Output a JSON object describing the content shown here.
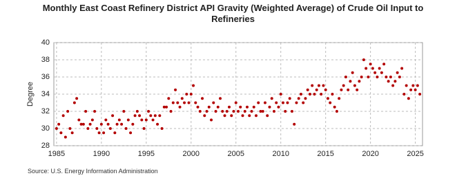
{
  "chart_data": {
    "type": "scatter",
    "title": "Monthly East Coast Refinery District API Gravity (Weighted Average) of Crude Oil Input to Refineries",
    "y_label": "Degree",
    "source": "Source: U.S. Energy Information Administration",
    "color": "#b30000",
    "grid": true,
    "xlim": [
      1984.7,
      2025.8
    ],
    "ylim": [
      28,
      40
    ],
    "xticks": [
      1985,
      1990,
      1995,
      2000,
      2005,
      2010,
      2015,
      2020,
      2025
    ],
    "yticks": [
      28,
      30,
      32,
      34,
      36,
      38,
      40
    ],
    "x": [
      1985,
      1985.25,
      1985.5,
      1985.75,
      1986,
      1986.25,
      1986.5,
      1986.75,
      1987,
      1987.25,
      1987.5,
      1987.75,
      1988,
      1988.25,
      1988.5,
      1988.75,
      1989,
      1989.25,
      1989.5,
      1989.75,
      1990,
      1990.25,
      1990.5,
      1990.75,
      1991,
      1991.25,
      1991.5,
      1991.75,
      1992,
      1992.25,
      1992.5,
      1992.75,
      1993,
      1993.25,
      1993.5,
      1993.75,
      1994,
      1994.25,
      1994.5,
      1994.75,
      1995,
      1995.25,
      1995.5,
      1995.75,
      1996,
      1996.25,
      1996.5,
      1996.75,
      1997,
      1997.25,
      1997.5,
      1997.75,
      1998,
      1998.25,
      1998.5,
      1998.75,
      1999,
      1999.25,
      1999.5,
      1999.75,
      2000,
      2000.25,
      2000.5,
      2000.75,
      2001,
      2001.25,
      2001.5,
      2001.75,
      2002,
      2002.25,
      2002.5,
      2002.75,
      2003,
      2003.25,
      2003.5,
      2003.75,
      2004,
      2004.25,
      2004.5,
      2004.75,
      2005,
      2005.25,
      2005.5,
      2005.75,
      2006,
      2006.25,
      2006.5,
      2006.75,
      2007,
      2007.25,
      2007.5,
      2007.75,
      2008,
      2008.25,
      2008.5,
      2008.75,
      2009,
      2009.25,
      2009.5,
      2009.75,
      2010,
      2010.25,
      2010.5,
      2010.75,
      2011,
      2011.25,
      2011.5,
      2011.75,
      2012,
      2012.25,
      2012.5,
      2012.75,
      2013,
      2013.25,
      2013.5,
      2013.75,
      2014,
      2014.25,
      2014.5,
      2014.75,
      2015,
      2015.25,
      2015.5,
      2015.75,
      2016,
      2016.25,
      2016.5,
      2016.75,
      2017,
      2017.25,
      2017.5,
      2017.75,
      2018,
      2018.25,
      2018.5,
      2018.75,
      2019,
      2019.25,
      2019.5,
      2019.75,
      2020,
      2020.25,
      2020.5,
      2020.75,
      2021,
      2021.25,
      2021.5,
      2021.75,
      2022,
      2022.25,
      2022.5,
      2022.75,
      2023,
      2023.25,
      2023.5,
      2023.75,
      2024,
      2024.25,
      2024.5,
      2024.75,
      2025,
      2025.25,
      2025.5
    ],
    "values": [
      30,
      30.5,
      29.5,
      31.5,
      29,
      32,
      30,
      29.5,
      33,
      33.5,
      31,
      30.5,
      30.5,
      32,
      30,
      30.5,
      31,
      32,
      30,
      29.5,
      30.5,
      29.5,
      31,
      30.5,
      30,
      31.5,
      29.5,
      30.5,
      31,
      30.5,
      32,
      30,
      31,
      29.5,
      30.5,
      31.5,
      32,
      31.5,
      31,
      30,
      31,
      32,
      31.5,
      31,
      31.5,
      30.5,
      31.5,
      30,
      32.5,
      32.5,
      33.5,
      32,
      33,
      34.5,
      33,
      32.5,
      33.5,
      33,
      34,
      33,
      34,
      35,
      33,
      32.5,
      32,
      33.5,
      31.5,
      32,
      32.5,
      31,
      33,
      32,
      32.5,
      33.5,
      32,
      31.5,
      32,
      32.5,
      31.5,
      32,
      33,
      32,
      32.5,
      31.5,
      32,
      32.5,
      31.5,
      32,
      32.5,
      31.5,
      33,
      32,
      32,
      33,
      31.5,
      32.5,
      33.5,
      32,
      33,
      32.5,
      34,
      33,
      32,
      33,
      33.5,
      32,
      30.5,
      33,
      33.5,
      34,
      33,
      33.5,
      34.5,
      34,
      35,
      34,
      34.5,
      35,
      34,
      35,
      34.5,
      33.5,
      33,
      34,
      32.5,
      32,
      33.5,
      34.5,
      35,
      36,
      34.5,
      35.5,
      36.5,
      35,
      34.5,
      35.5,
      36,
      38,
      37,
      36,
      37.5,
      37,
      36.5,
      36,
      37,
      36.5,
      37.5,
      36,
      35.5,
      36,
      35,
      35.5,
      36.5,
      36,
      37,
      34,
      35,
      33.5,
      34.5,
      35,
      34.5,
      35,
      34
    ]
  }
}
